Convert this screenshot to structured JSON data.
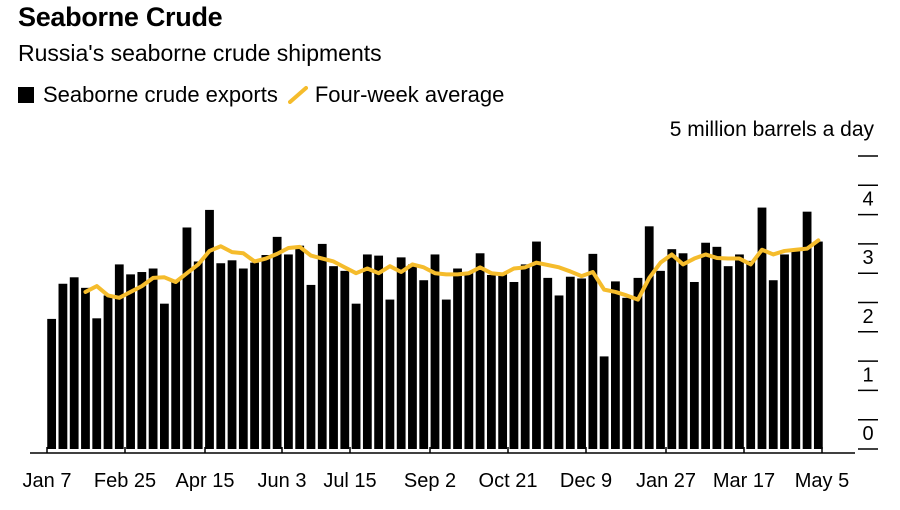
{
  "title": "Seaborne Crude",
  "subtitle": "Russia's seaborne crude shipments",
  "legend": {
    "bars_label": "Seaborne crude exports",
    "line_label": "Four-week average"
  },
  "units_label": "5 million barrels a day",
  "colors": {
    "bars": "#000000",
    "line": "#f5bc2c",
    "axis": "#000000"
  },
  "chart_data": {
    "type": "bar",
    "title": "Seaborne Crude",
    "subtitle": "Russia's seaborne crude shipments",
    "ylabel": "5 million barrels a day",
    "ylim": [
      0,
      5
    ],
    "y_ticks": [
      0,
      1,
      2,
      3,
      4
    ],
    "x_ticks": [
      "Jan 7",
      "Feb 25",
      "Apr 15",
      "Jun 3",
      "Jul 15",
      "Sep 2",
      "Oct 21",
      "Dec 9",
      "Jan 27",
      "Mar 17",
      "May 5"
    ],
    "grid": false,
    "legend_position": "top-left",
    "series": [
      {
        "name": "Seaborne crude exports",
        "type": "bar",
        "values": [
          2.22,
          2.82,
          2.93,
          2.75,
          2.23,
          2.62,
          3.15,
          2.98,
          3.02,
          3.08,
          2.48,
          2.87,
          3.78,
          3.2,
          4.08,
          3.17,
          3.22,
          3.08,
          3.18,
          3.31,
          3.62,
          3.32,
          3.47,
          2.8,
          3.5,
          3.12,
          3.04,
          2.48,
          3.32,
          3.3,
          2.55,
          3.27,
          3.15,
          2.88,
          3.32,
          2.55,
          3.08,
          3.01,
          3.34,
          2.97,
          3.0,
          2.85,
          3.15,
          3.54,
          2.92,
          2.62,
          2.94,
          2.91,
          3.33,
          1.58,
          2.86,
          2.58,
          2.92,
          3.8,
          3.04,
          3.41,
          3.34,
          2.85,
          3.52,
          3.45,
          3.12,
          3.32,
          3.21,
          4.12,
          2.88,
          3.32,
          3.42,
          4.05,
          3.54
        ]
      },
      {
        "name": "Four-week average",
        "type": "line",
        "values": [
          null,
          null,
          null,
          2.68,
          2.78,
          2.62,
          2.58,
          2.68,
          2.78,
          2.92,
          2.93,
          2.85,
          3.0,
          3.15,
          3.38,
          3.46,
          3.36,
          3.34,
          3.2,
          3.25,
          3.33,
          3.43,
          3.45,
          3.3,
          3.25,
          3.2,
          3.1,
          3.0,
          3.08,
          3.0,
          3.12,
          3.02,
          3.15,
          3.1,
          3.0,
          2.98,
          2.98,
          3.0,
          3.1,
          3.0,
          2.98,
          3.08,
          3.1,
          3.18,
          3.14,
          3.1,
          3.03,
          2.95,
          3.02,
          2.72,
          2.68,
          2.62,
          2.55,
          2.92,
          3.18,
          3.32,
          3.15,
          3.25,
          3.32,
          3.26,
          3.25,
          3.25,
          3.15,
          3.4,
          3.32,
          3.38,
          3.4,
          3.42,
          3.56
        ]
      }
    ]
  }
}
